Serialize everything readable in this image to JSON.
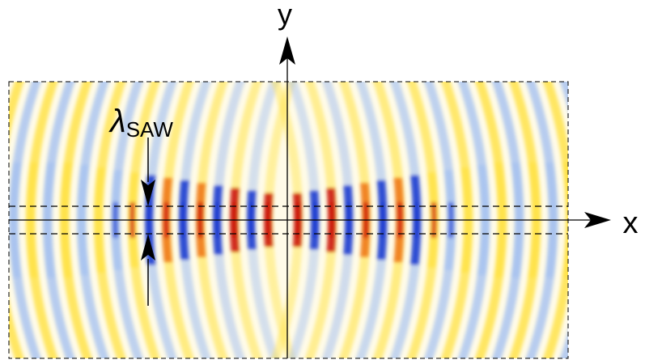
{
  "labels": {
    "y_axis": "y",
    "x_axis": "x",
    "wavelength_symbol": "λ",
    "wavelength_subscript": "SAW"
  },
  "colors": {
    "background": "#ffffff",
    "field_background": "#fffbe8",
    "positive_strong": "#cc1a10",
    "positive_mid": "#f07a1a",
    "positive_weak": "#ffe34a",
    "negative_weak": "#aac4f0",
    "negative_strong": "#1f3fd0",
    "axis": "#000000",
    "dashed_frame": "#000000"
  }
}
